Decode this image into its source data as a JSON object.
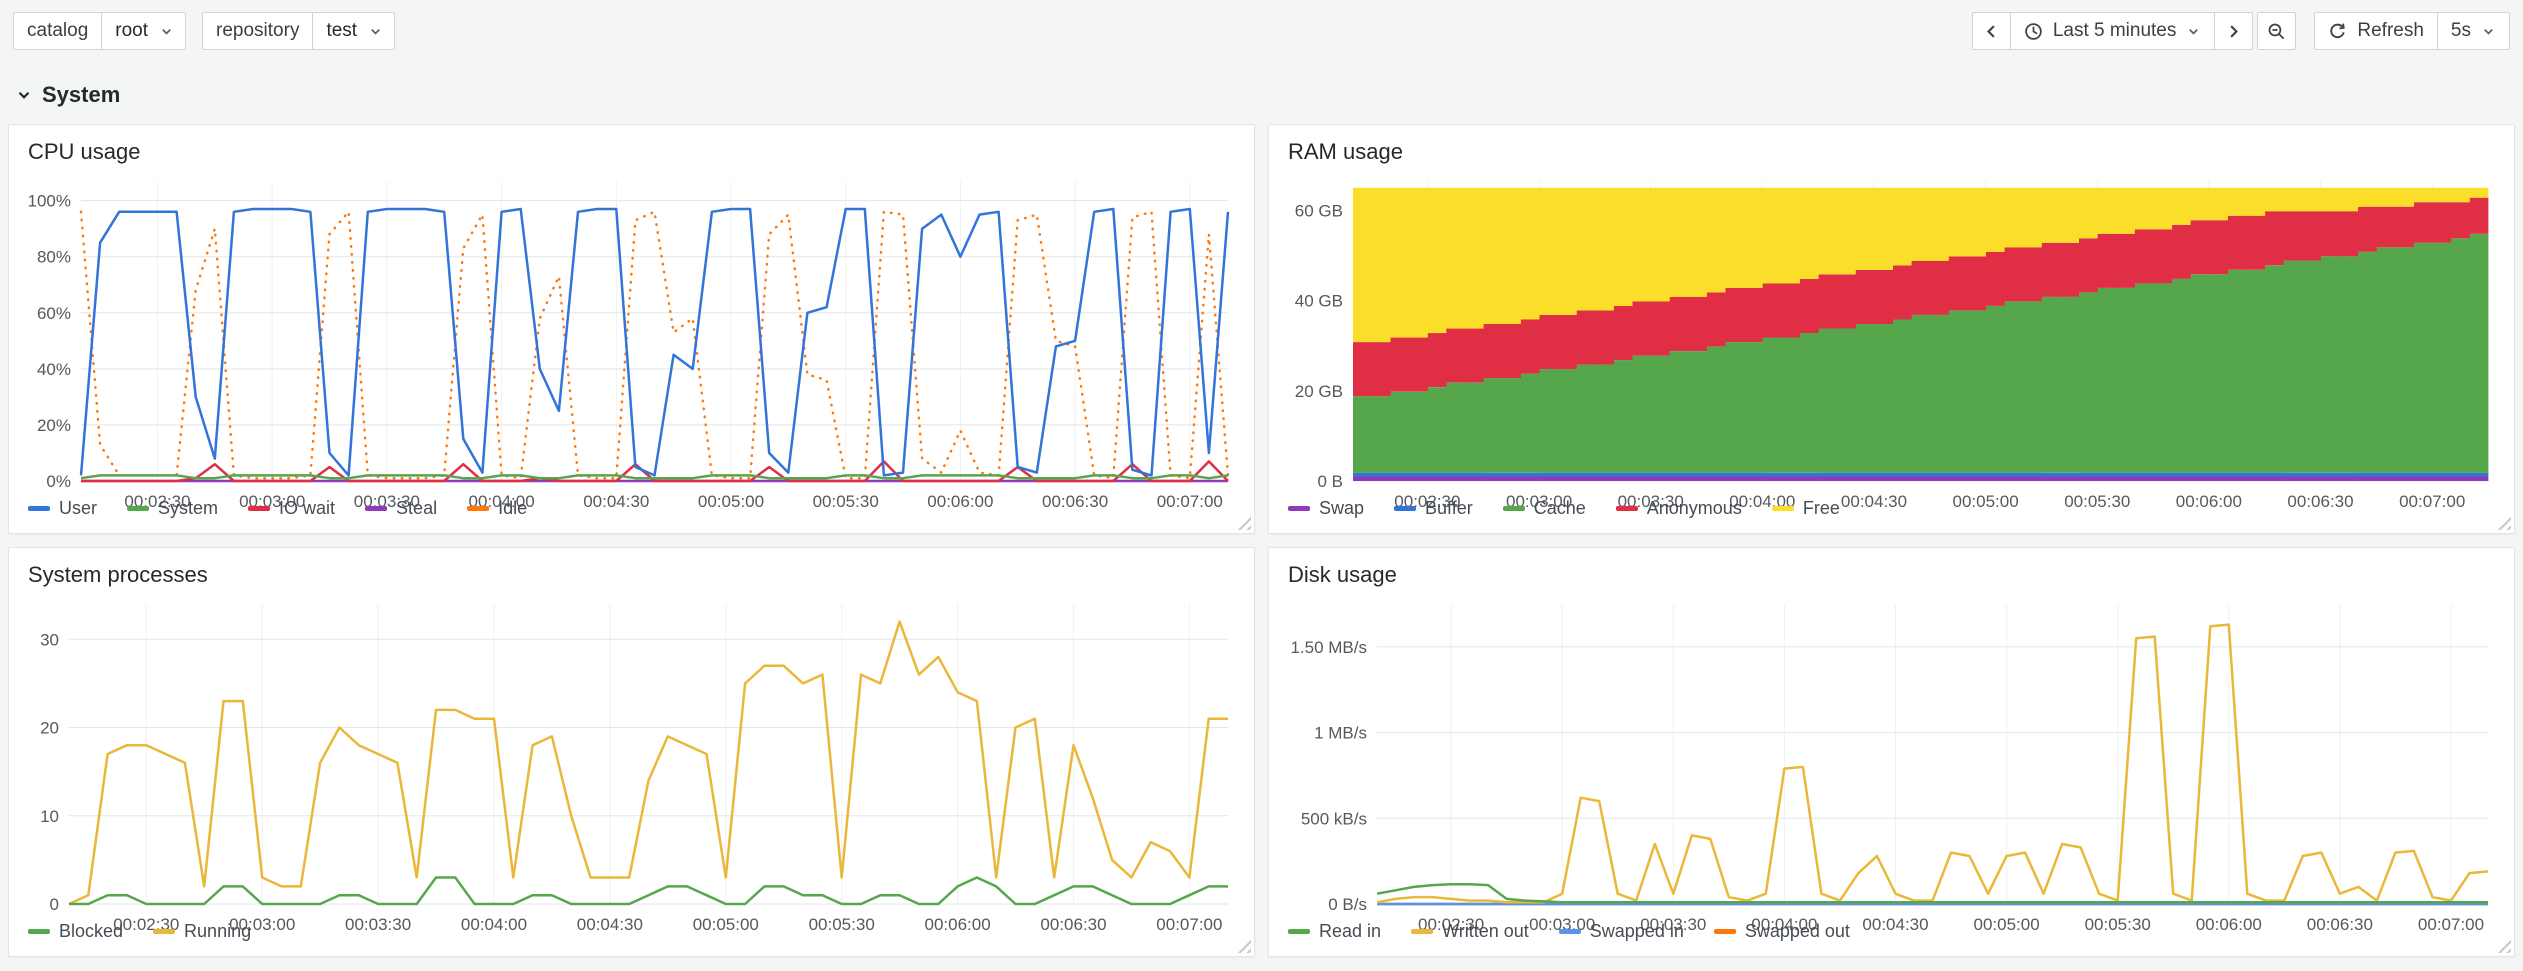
{
  "topbar": {
    "variables": [
      {
        "label": "catalog",
        "value": "root"
      },
      {
        "label": "repository",
        "value": "test"
      }
    ],
    "time_range": "Last 5 minutes",
    "refresh_label": "Refresh",
    "refresh_interval": "5s"
  },
  "section": {
    "title": "System"
  },
  "icons": {
    "time_back": "chevron-left",
    "time_range": "clock",
    "time_forward": "chevron-right",
    "zoom_out": "magnifier-minus",
    "refresh": "circular-arrow",
    "dropdown": "chevron-down",
    "section_toggle": "chevron-down",
    "panel_corner": "diagonal-resize-grip"
  },
  "chart_data": [
    {
      "id": "cpu",
      "type": "line",
      "title": "CPU usage",
      "ylim": [
        0,
        107
      ],
      "xlim": [
        0,
        300
      ],
      "margin_left": 64,
      "y_ticks": [
        {
          "v": 0,
          "label": "0%"
        },
        {
          "v": 20,
          "label": "20%"
        },
        {
          "v": 40,
          "label": "40%"
        },
        {
          "v": 60,
          "label": "60%"
        },
        {
          "v": 80,
          "label": "80%"
        },
        {
          "v": 100,
          "label": "100%"
        }
      ],
      "x_ticks": [
        {
          "v": 20,
          "label": "00:02:30"
        },
        {
          "v": 50,
          "label": "00:03:00"
        },
        {
          "v": 80,
          "label": "00:03:30"
        },
        {
          "v": 110,
          "label": "00:04:00"
        },
        {
          "v": 140,
          "label": "00:04:30"
        },
        {
          "v": 170,
          "label": "00:05:00"
        },
        {
          "v": 200,
          "label": "00:05:30"
        },
        {
          "v": 230,
          "label": "00:06:00"
        },
        {
          "v": 260,
          "label": "00:06:30"
        },
        {
          "v": 290,
          "label": "00:07:00"
        }
      ],
      "series": [
        {
          "name": "User",
          "color": "#3274D9",
          "values": [
            2,
            85,
            96,
            96,
            96,
            96,
            30,
            8,
            96,
            97,
            97,
            97,
            96,
            10,
            2,
            96,
            97,
            97,
            97,
            96,
            15,
            3,
            96,
            97,
            40,
            25,
            96,
            97,
            97,
            5,
            2,
            45,
            40,
            96,
            97,
            97,
            10,
            3,
            60,
            62,
            97,
            97,
            2,
            3,
            90,
            95,
            80,
            95,
            96,
            5,
            3,
            48,
            50,
            96,
            97,
            4,
            2,
            96,
            97,
            10,
            96
          ]
        },
        {
          "name": "System",
          "color": "#56A64B",
          "values": [
            1,
            2,
            2,
            2,
            2,
            2,
            1,
            1,
            2,
            2,
            2,
            2,
            2,
            1,
            1,
            2,
            2,
            2,
            2,
            2,
            1,
            1,
            2,
            2,
            1,
            1,
            2,
            2,
            2,
            1,
            1,
            1,
            1,
            2,
            2,
            2,
            1,
            1,
            1,
            1,
            2,
            2,
            1,
            1,
            2,
            2,
            2,
            2,
            2,
            1,
            1,
            1,
            1,
            2,
            2,
            1,
            1,
            2,
            2,
            1,
            2
          ]
        },
        {
          "name": "IO wait",
          "color": "#E02F44",
          "values": [
            0,
            0,
            0,
            0,
            0,
            0,
            1,
            6,
            0,
            0,
            0,
            0,
            0,
            5,
            0,
            0,
            0,
            0,
            0,
            0,
            6,
            0,
            0,
            0,
            1,
            0,
            0,
            0,
            0,
            6,
            0,
            0,
            0,
            0,
            0,
            0,
            5,
            0,
            0,
            0,
            0,
            0,
            7,
            0,
            0,
            0,
            0,
            0,
            0,
            5,
            0,
            0,
            0,
            0,
            0,
            6,
            0,
            0,
            0,
            7,
            0
          ]
        },
        {
          "name": "Steal",
          "color": "#8F3BB8",
          "values": 0
        },
        {
          "name": "Idle",
          "color": "#FF780A",
          "dash": "dot",
          "values": [
            96,
            13,
            2,
            2,
            2,
            2,
            68,
            90,
            2,
            1,
            1,
            1,
            2,
            88,
            96,
            2,
            1,
            1,
            1,
            2,
            83,
            95,
            2,
            1,
            58,
            73,
            2,
            1,
            1,
            93,
            96,
            53,
            58,
            2,
            1,
            1,
            88,
            95,
            38,
            36,
            1,
            1,
            96,
            95,
            8,
            3,
            18,
            3,
            2,
            93,
            95,
            50,
            48,
            2,
            1,
            94,
            96,
            2,
            1,
            88,
            2
          ]
        }
      ]
    },
    {
      "id": "ram",
      "type": "stacked",
      "title": "RAM usage",
      "ylim": [
        0,
        66.5
      ],
      "xlim": [
        0,
        305
      ],
      "margin_left": 76,
      "y_ticks": [
        {
          "v": 0,
          "label": "0 B"
        },
        {
          "v": 20,
          "label": "20 GB"
        },
        {
          "v": 40,
          "label": "40 GB"
        },
        {
          "v": 60,
          "label": "60 GB"
        }
      ],
      "x_ticks": [
        {
          "v": 20,
          "label": "00:02:30"
        },
        {
          "v": 50,
          "label": "00:03:00"
        },
        {
          "v": 80,
          "label": "00:03:30"
        },
        {
          "v": 110,
          "label": "00:04:00"
        },
        {
          "v": 140,
          "label": "00:04:30"
        },
        {
          "v": 170,
          "label": "00:05:00"
        },
        {
          "v": 200,
          "label": "00:05:30"
        },
        {
          "v": 230,
          "label": "00:06:00"
        },
        {
          "v": 260,
          "label": "00:06:30"
        },
        {
          "v": 290,
          "label": "00:07:00"
        }
      ],
      "series": [
        {
          "name": "Swap",
          "color": "#8F3BB8",
          "values": 1
        },
        {
          "name": "Buffer",
          "color": "#3274D9",
          "values": 0.8
        },
        {
          "name": "Cache",
          "color": "#56A64B",
          "values": [
            17,
            17,
            18,
            18,
            19,
            20,
            20,
            21,
            21,
            22,
            23,
            23,
            24,
            24,
            25,
            26,
            26,
            27,
            27,
            28,
            29,
            29,
            30,
            30,
            31,
            32,
            32,
            33,
            33,
            34,
            35,
            35,
            36,
            36,
            37,
            38,
            38,
            39,
            39,
            40,
            41,
            41,
            42,
            42,
            43,
            44,
            44,
            45,
            45,
            46,
            47,
            47,
            48,
            48,
            49,
            50,
            50,
            51,
            51,
            52,
            53
          ]
        },
        {
          "name": "Anonymous",
          "color": "#E02F44",
          "values": [
            12,
            12,
            12,
            12,
            12,
            12,
            12,
            12,
            12,
            12,
            12,
            12,
            12,
            12,
            12,
            12,
            12,
            12,
            12,
            12,
            12,
            12,
            12,
            12,
            12,
            12,
            12,
            12,
            12,
            12,
            12,
            12,
            12,
            12,
            12,
            12,
            12,
            12,
            12,
            12,
            12,
            12,
            12,
            12,
            12,
            12,
            12,
            12,
            12,
            12,
            11,
            11,
            10,
            10,
            10,
            9,
            9,
            9,
            9,
            8,
            8
          ]
        },
        {
          "name": "Free",
          "color": "#FADE2A",
          "values": [
            34.2,
            34.2,
            33.2,
            33.2,
            32.2,
            31.2,
            31.2,
            30.2,
            30.2,
            29.2,
            28.2,
            28.2,
            27.2,
            27.2,
            26.2,
            25.2,
            25.2,
            24.2,
            24.2,
            23.2,
            22.2,
            22.2,
            21.2,
            21.2,
            20.2,
            19.2,
            19.2,
            18.2,
            18.2,
            17.2,
            16.2,
            16.2,
            15.2,
            15.2,
            14.2,
            13.2,
            13.2,
            12.2,
            12.2,
            11.2,
            10.2,
            10.2,
            9.2,
            9.2,
            8.2,
            7.2,
            7.2,
            6.2,
            6.2,
            5.2,
            5.2,
            5.2,
            5.2,
            5.2,
            4.2,
            4.2,
            4.2,
            3.2,
            3.2,
            3.2,
            2.2
          ]
        }
      ]
    },
    {
      "id": "processes",
      "type": "line",
      "title": "System processes",
      "ylim": [
        0,
        34
      ],
      "xlim": [
        0,
        300
      ],
      "margin_left": 52,
      "y_ticks": [
        {
          "v": 0,
          "label": "0"
        },
        {
          "v": 10,
          "label": "10"
        },
        {
          "v": 20,
          "label": "20"
        },
        {
          "v": 30,
          "label": "30"
        }
      ],
      "x_ticks": [
        {
          "v": 20,
          "label": "00:02:30"
        },
        {
          "v": 50,
          "label": "00:03:00"
        },
        {
          "v": 80,
          "label": "00:03:30"
        },
        {
          "v": 110,
          "label": "00:04:00"
        },
        {
          "v": 140,
          "label": "00:04:30"
        },
        {
          "v": 170,
          "label": "00:05:00"
        },
        {
          "v": 200,
          "label": "00:05:30"
        },
        {
          "v": 230,
          "label": "00:06:00"
        },
        {
          "v": 260,
          "label": "00:06:30"
        },
        {
          "v": 290,
          "label": "00:07:00"
        }
      ],
      "series": [
        {
          "name": "Blocked",
          "color": "#56A64B",
          "values": [
            0,
            0,
            1,
            1,
            0,
            0,
            0,
            0,
            2,
            2,
            0,
            0,
            0,
            0,
            1,
            1,
            0,
            0,
            0,
            3,
            3,
            0,
            0,
            0,
            1,
            1,
            0,
            0,
            0,
            0,
            1,
            2,
            2,
            1,
            0,
            0,
            2,
            2,
            1,
            1,
            0,
            0,
            1,
            1,
            0,
            0,
            2,
            3,
            2,
            0,
            0,
            1,
            2,
            2,
            1,
            0,
            0,
            0,
            1,
            2,
            2
          ]
        },
        {
          "name": "Running",
          "color": "#EAB839",
          "values": [
            0,
            1,
            17,
            18,
            18,
            17,
            16,
            2,
            23,
            23,
            3,
            2,
            2,
            16,
            20,
            18,
            17,
            16,
            3,
            22,
            22,
            21,
            21,
            3,
            18,
            19,
            10,
            3,
            3,
            3,
            14,
            19,
            18,
            17,
            3,
            25,
            27,
            27,
            25,
            26,
            3,
            26,
            25,
            32,
            26,
            28,
            24,
            23,
            3,
            20,
            21,
            3,
            18,
            12,
            5,
            3,
            7,
            6,
            3,
            21,
            21
          ]
        }
      ]
    },
    {
      "id": "disk",
      "type": "line",
      "title": "Disk usage",
      "ylim": [
        0,
        1750
      ],
      "xlim": [
        0,
        300
      ],
      "margin_left": 100,
      "y_ticks": [
        {
          "v": 0,
          "label": "0 B/s"
        },
        {
          "v": 500,
          "label": "500 kB/s"
        },
        {
          "v": 1000,
          "label": "1 MB/s"
        },
        {
          "v": 1500,
          "label": "1.50 MB/s"
        }
      ],
      "x_ticks": [
        {
          "v": 20,
          "label": "00:02:30"
        },
        {
          "v": 50,
          "label": "00:03:00"
        },
        {
          "v": 80,
          "label": "00:03:30"
        },
        {
          "v": 110,
          "label": "00:04:00"
        },
        {
          "v": 140,
          "label": "00:04:30"
        },
        {
          "v": 170,
          "label": "00:05:00"
        },
        {
          "v": 200,
          "label": "00:05:30"
        },
        {
          "v": 230,
          "label": "00:06:00"
        },
        {
          "v": 260,
          "label": "00:06:30"
        },
        {
          "v": 290,
          "label": "00:07:00"
        }
      ],
      "series": [
        {
          "name": "Read in",
          "color": "#56A64B",
          "values": [
            60,
            80,
            100,
            110,
            115,
            115,
            110,
            30,
            20,
            15,
            10,
            10,
            10,
            10,
            10,
            10,
            10,
            10,
            10,
            10,
            10,
            10,
            10,
            10,
            10,
            10,
            10,
            10,
            10,
            10,
            10,
            10,
            10,
            10,
            10,
            10,
            10,
            10,
            10,
            10,
            10,
            10,
            10,
            10,
            10,
            10,
            10,
            10,
            10,
            10,
            10,
            10,
            10,
            10,
            10,
            10,
            10,
            10,
            10,
            10,
            10
          ]
        },
        {
          "name": "Written out",
          "color": "#EAB839",
          "values": [
            10,
            30,
            40,
            40,
            30,
            20,
            20,
            10,
            10,
            10,
            60,
            620,
            600,
            60,
            20,
            350,
            60,
            400,
            380,
            40,
            20,
            60,
            790,
            800,
            60,
            20,
            180,
            280,
            60,
            20,
            20,
            300,
            280,
            60,
            280,
            300,
            60,
            350,
            330,
            60,
            20,
            1550,
            1560,
            60,
            20,
            1620,
            1630,
            60,
            20,
            20,
            280,
            300,
            60,
            100,
            20,
            300,
            310,
            40,
            20,
            180,
            190
          ]
        },
        {
          "name": "Swapped in",
          "color": "#5794F2",
          "values": 0
        },
        {
          "name": "Swapped out",
          "color": "#FF780A",
          "values": 0
        }
      ]
    }
  ]
}
